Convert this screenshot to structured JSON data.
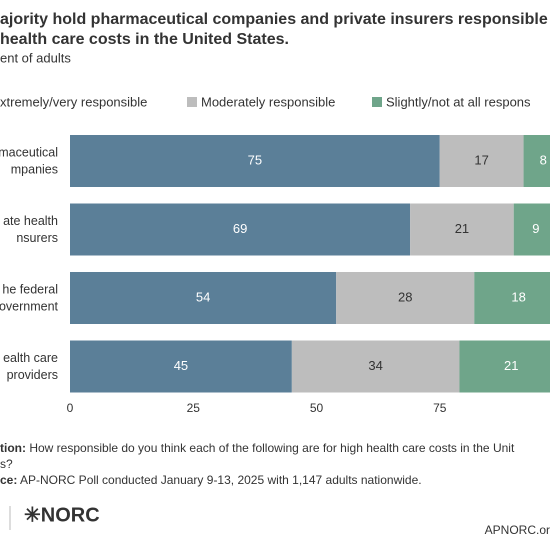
{
  "chart_data": {
    "type": "stacked-bar-horizontal",
    "title_lines": [
      "ajority hold pharmaceutical companies and private insurers responsible",
      "health care costs in the United States."
    ],
    "subtitle": "ent of adults",
    "categories": [
      [
        "maceutical",
        "mpanies"
      ],
      [
        "ate health",
        "nsurers"
      ],
      [
        "he federal",
        "overnment"
      ],
      [
        "ealth care",
        "providers"
      ]
    ],
    "series": [
      {
        "name": "xtremely/very responsible",
        "color": "#5b7f98",
        "values": [
          75,
          69,
          54,
          45
        ]
      },
      {
        "name": "Moderately responsible",
        "color": "#bdbdbd",
        "values": [
          17,
          21,
          28,
          34
        ]
      },
      {
        "name": "Slightly/not at all respons",
        "color": "#6fa58a",
        "values": [
          8,
          9,
          18,
          21
        ]
      }
    ],
    "xlim": [
      0,
      100
    ],
    "xticks": [
      0,
      25,
      50,
      75
    ],
    "question": {
      "label": "tion:",
      "lines": [
        " How responsible do you think each of the following are for high health care costs in the Unit",
        "s?"
      ]
    },
    "source": {
      "label": "ce:",
      "text": " AP-NORC Poll conducted January 9-13, 2025 with 1,147 adults nationwide."
    },
    "logo": "✳NORC",
    "website": "APNORC.or"
  }
}
